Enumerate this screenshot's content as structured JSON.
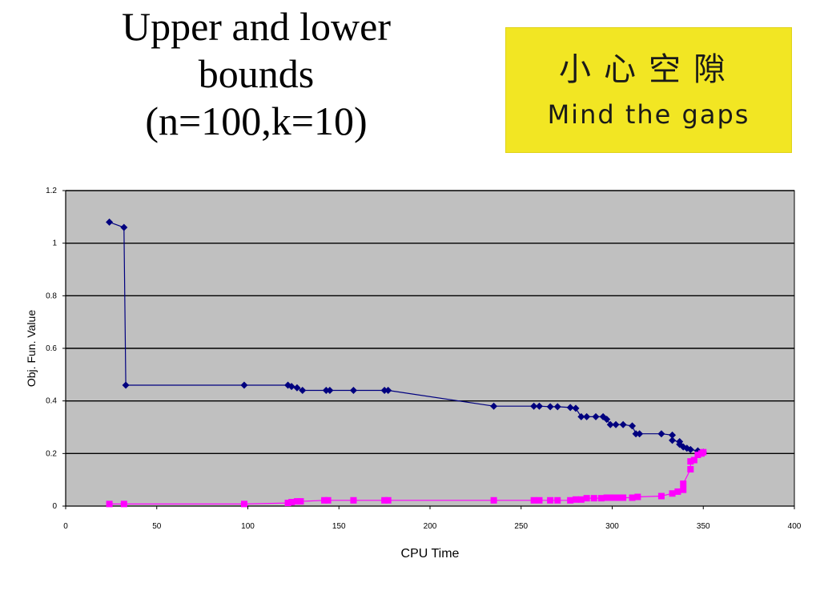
{
  "slide": {
    "title_lines": [
      "Upper and lower",
      "bounds",
      "(n=100,k=10)"
    ]
  },
  "sign": {
    "text_cjk": "小心空隙",
    "text_en": "Mind the gaps",
    "background_color": "#f2e623"
  },
  "chart_data": {
    "type": "scatter",
    "xlabel": "CPU Time",
    "ylabel": "Obj. Fun. Value",
    "xlim": [
      0,
      400
    ],
    "ylim": [
      0,
      1.2
    ],
    "xticks": [
      0,
      50,
      100,
      150,
      200,
      250,
      300,
      350,
      400
    ],
    "yticks": [
      0,
      0.2,
      0.4,
      0.6,
      0.8,
      1,
      1.2
    ],
    "grid": "horizontal",
    "plot_background": "#c0c0c0",
    "series": [
      {
        "color": "#00007f",
        "marker": "diamond",
        "points": [
          [
            24,
            1.08
          ],
          [
            32,
            1.06
          ],
          [
            33,
            0.46
          ],
          [
            98,
            0.46
          ],
          [
            122,
            0.46
          ],
          [
            124,
            0.455
          ],
          [
            127,
            0.45
          ],
          [
            130,
            0.44
          ],
          [
            143,
            0.44
          ],
          [
            145,
            0.44
          ],
          [
            158,
            0.44
          ],
          [
            175,
            0.44
          ],
          [
            177,
            0.44
          ],
          [
            235,
            0.38
          ],
          [
            257,
            0.38
          ],
          [
            260,
            0.38
          ],
          [
            266,
            0.378
          ],
          [
            270,
            0.378
          ],
          [
            277,
            0.375
          ],
          [
            280,
            0.372
          ],
          [
            283,
            0.34
          ],
          [
            286,
            0.34
          ],
          [
            291,
            0.34
          ],
          [
            295,
            0.34
          ],
          [
            297,
            0.33
          ],
          [
            299,
            0.31
          ],
          [
            302,
            0.31
          ],
          [
            306,
            0.31
          ],
          [
            311,
            0.305
          ],
          [
            313,
            0.275
          ],
          [
            315,
            0.275
          ],
          [
            327,
            0.275
          ],
          [
            333,
            0.27
          ],
          [
            333,
            0.25
          ],
          [
            337,
            0.245
          ],
          [
            337,
            0.235
          ],
          [
            339,
            0.225
          ],
          [
            341,
            0.22
          ],
          [
            343,
            0.215
          ],
          [
            347,
            0.21
          ],
          [
            350,
            0.205
          ]
        ]
      },
      {
        "color": "#ff00ff",
        "marker": "square",
        "points": [
          [
            24,
            0.008
          ],
          [
            32,
            0.008
          ],
          [
            98,
            0.008
          ],
          [
            122,
            0.012
          ],
          [
            124,
            0.015
          ],
          [
            127,
            0.018
          ],
          [
            129,
            0.018
          ],
          [
            142,
            0.022
          ],
          [
            144,
            0.022
          ],
          [
            158,
            0.022
          ],
          [
            175,
            0.022
          ],
          [
            177,
            0.022
          ],
          [
            235,
            0.022
          ],
          [
            257,
            0.022
          ],
          [
            260,
            0.022
          ],
          [
            266,
            0.022
          ],
          [
            270,
            0.022
          ],
          [
            277,
            0.022
          ],
          [
            280,
            0.025
          ],
          [
            283,
            0.025
          ],
          [
            286,
            0.03
          ],
          [
            290,
            0.03
          ],
          [
            294,
            0.03
          ],
          [
            297,
            0.032
          ],
          [
            300,
            0.032
          ],
          [
            303,
            0.032
          ],
          [
            306,
            0.032
          ],
          [
            311,
            0.032
          ],
          [
            314,
            0.035
          ],
          [
            327,
            0.038
          ],
          [
            333,
            0.048
          ],
          [
            336,
            0.055
          ],
          [
            339,
            0.062
          ],
          [
            339,
            0.085
          ],
          [
            343,
            0.14
          ],
          [
            343,
            0.17
          ],
          [
            345,
            0.175
          ],
          [
            347,
            0.195
          ],
          [
            349,
            0.2
          ],
          [
            350,
            0.205
          ]
        ]
      }
    ]
  }
}
